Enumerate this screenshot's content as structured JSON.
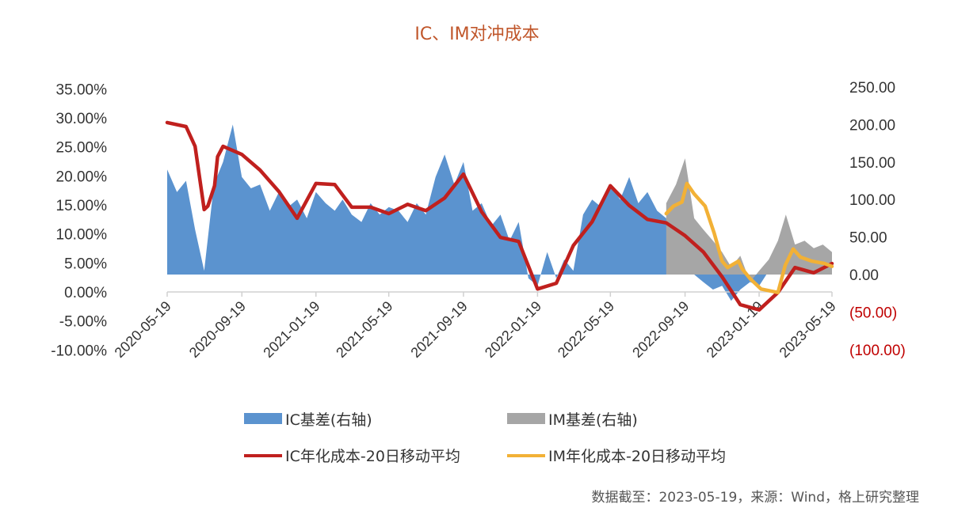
{
  "chart_data": {
    "type": "area+line",
    "title": "IC、IM对冲成本",
    "left_axis": {
      "ylim": [
        -10,
        35
      ],
      "ticks": [
        "35.00%",
        "30.00%",
        "25.00%",
        "20.00%",
        "15.00%",
        "10.00%",
        "5.00%",
        "0.00%",
        "-5.00%",
        "-10.00%"
      ],
      "tick_values": [
        35,
        30,
        25,
        20,
        15,
        10,
        5,
        0,
        -5,
        -10
      ]
    },
    "right_axis": {
      "ylim": [
        -100,
        250
      ],
      "ticks": [
        "250.00",
        "200.00",
        "150.00",
        "100.00",
        "50.00",
        "0.00",
        "(50.00)",
        "(100.00)"
      ],
      "tick_values": [
        250,
        200,
        150,
        100,
        50,
        0,
        -50,
        -100
      ],
      "negative_color": "#c00000"
    },
    "x_axis": {
      "range": [
        "2020-05-19",
        "2023-05-19"
      ],
      "ticks": [
        "2020-05-19",
        "2020-09-19",
        "2021-01-19",
        "2021-05-19",
        "2021-09-19",
        "2022-01-19",
        "2022-05-19",
        "2022-09-19",
        "2023-01-19",
        "2023-05-19"
      ]
    },
    "grid": false,
    "legend_placement": "bottom",
    "x": [
      "2020-05-19",
      "2020-06-04",
      "2020-06-19",
      "2020-07-04",
      "2020-07-19",
      "2020-08-04",
      "2020-08-19",
      "2020-09-04",
      "2020-09-19",
      "2020-10-04",
      "2020-10-19",
      "2020-11-04",
      "2020-11-19",
      "2020-12-04",
      "2020-12-19",
      "2021-01-04",
      "2021-01-19",
      "2021-02-04",
      "2021-02-19",
      "2021-03-04",
      "2021-03-19",
      "2021-04-04",
      "2021-04-19",
      "2021-05-04",
      "2021-05-19",
      "2021-06-04",
      "2021-06-19",
      "2021-07-04",
      "2021-07-19",
      "2021-08-04",
      "2021-08-19",
      "2021-09-04",
      "2021-09-19",
      "2021-10-04",
      "2021-10-19",
      "2021-11-04",
      "2021-11-19",
      "2021-12-04",
      "2021-12-19",
      "2022-01-04",
      "2022-01-19",
      "2022-02-04",
      "2022-02-19",
      "2022-03-04",
      "2022-03-19",
      "2022-04-04",
      "2022-04-19",
      "2022-05-04",
      "2022-05-19",
      "2022-06-04",
      "2022-06-19",
      "2022-07-04",
      "2022-07-19",
      "2022-08-04",
      "2022-08-19",
      "2022-09-04",
      "2022-09-19",
      "2022-10-04",
      "2022-10-19",
      "2022-11-04",
      "2022-11-19",
      "2022-12-04",
      "2022-12-19",
      "2023-01-04",
      "2023-01-19",
      "2023-02-04",
      "2023-02-19",
      "2023-03-04",
      "2023-03-19",
      "2023-04-04",
      "2023-04-19",
      "2023-05-04",
      "2023-05-19"
    ],
    "area_series": [
      {
        "name": "IC基差(右轴)",
        "axis": "right",
        "color": "#5b93cf",
        "values": [
          140,
          110,
          125,
          60,
          5,
          120,
          150,
          200,
          130,
          115,
          120,
          85,
          110,
          90,
          100,
          75,
          110,
          95,
          85,
          100,
          80,
          70,
          95,
          80,
          90,
          85,
          70,
          95,
          80,
          130,
          160,
          120,
          150,
          85,
          95,
          65,
          80,
          45,
          70,
          -5,
          -15,
          30,
          -5,
          20,
          5,
          80,
          100,
          90,
          120,
          100,
          130,
          95,
          110,
          85,
          75,
          0,
          10,
          0,
          -10,
          -20,
          -15,
          -35,
          -20,
          -10,
          -15,
          5,
          10,
          20,
          15,
          25,
          20,
          15,
          20
        ]
      },
      {
        "name": "IM基差(右轴)",
        "axis": "right",
        "color": "#a6a6a6",
        "values": [
          null,
          null,
          null,
          null,
          null,
          null,
          null,
          null,
          null,
          null,
          null,
          null,
          null,
          null,
          null,
          null,
          null,
          null,
          null,
          null,
          null,
          null,
          null,
          null,
          null,
          null,
          null,
          null,
          null,
          null,
          null,
          null,
          null,
          null,
          null,
          null,
          null,
          null,
          null,
          null,
          null,
          null,
          null,
          null,
          null,
          null,
          null,
          null,
          null,
          null,
          null,
          null,
          null,
          null,
          95,
          120,
          155,
          75,
          60,
          45,
          30,
          10,
          25,
          -10,
          5,
          20,
          45,
          80,
          40,
          45,
          35,
          40,
          30
        ]
      }
    ],
    "line_series": [
      {
        "name": "IC年化成本-20日移动平均",
        "axis": "left",
        "color": "#c0201e",
        "points": [
          [
            "2020-05-19",
            29.2
          ],
          [
            "2020-06-19",
            28.5
          ],
          [
            "2020-07-04",
            25.1
          ],
          [
            "2020-07-19",
            14.2
          ],
          [
            "2020-07-25",
            14.8
          ],
          [
            "2020-08-05",
            18.3
          ],
          [
            "2020-08-10",
            23.3
          ],
          [
            "2020-08-19",
            25.1
          ],
          [
            "2020-09-19",
            23.7
          ],
          [
            "2020-10-19",
            21.0
          ],
          [
            "2020-11-19",
            17.3
          ],
          [
            "2020-12-19",
            12.7
          ],
          [
            "2021-01-19",
            18.7
          ],
          [
            "2021-02-19",
            18.5
          ],
          [
            "2021-03-19",
            14.6
          ],
          [
            "2021-04-19",
            14.6
          ],
          [
            "2021-05-19",
            13.5
          ],
          [
            "2021-06-19",
            15.1
          ],
          [
            "2021-07-19",
            14.0
          ],
          [
            "2021-08-19",
            16.2
          ],
          [
            "2021-09-19",
            20.3
          ],
          [
            "2021-10-19",
            13.8
          ],
          [
            "2021-11-19",
            9.4
          ],
          [
            "2021-12-19",
            8.7
          ],
          [
            "2022-01-19",
            0.5
          ],
          [
            "2022-02-19",
            1.5
          ],
          [
            "2022-03-19",
            8.0
          ],
          [
            "2022-04-19",
            12.1
          ],
          [
            "2022-05-19",
            18.3
          ],
          [
            "2022-06-19",
            14.9
          ],
          [
            "2022-07-19",
            12.5
          ],
          [
            "2022-08-19",
            11.9
          ],
          [
            "2022-09-19",
            9.7
          ],
          [
            "2022-10-19",
            6.9
          ],
          [
            "2022-11-19",
            2.6
          ],
          [
            "2022-12-19",
            -2.2
          ],
          [
            "2023-01-19",
            -3.1
          ],
          [
            "2023-02-19",
            -0.1
          ],
          [
            "2023-03-19",
            4.2
          ],
          [
            "2023-04-19",
            3.3
          ],
          [
            "2023-05-19",
            4.9
          ]
        ]
      },
      {
        "name": "IM年化成本-20日移动平均",
        "axis": "left",
        "color": "#f2b136",
        "points": [
          [
            "2022-08-19",
            13.5
          ],
          [
            "2022-08-31",
            14.8
          ],
          [
            "2022-09-14",
            15.5
          ],
          [
            "2022-09-22",
            18.7
          ],
          [
            "2022-10-04",
            16.9
          ],
          [
            "2022-10-22",
            14.8
          ],
          [
            "2022-11-06",
            10.1
          ],
          [
            "2022-11-19",
            5.3
          ],
          [
            "2022-11-28",
            4.2
          ],
          [
            "2022-12-16",
            5.3
          ],
          [
            "2022-12-22",
            4.0
          ],
          [
            "2023-01-04",
            2.3
          ],
          [
            "2023-01-22",
            0.5
          ],
          [
            "2023-02-19",
            -0.1
          ],
          [
            "2023-03-03",
            4.6
          ],
          [
            "2023-03-16",
            7.4
          ],
          [
            "2023-03-28",
            6.0
          ],
          [
            "2023-04-16",
            5.3
          ],
          [
            "2023-05-07",
            4.9
          ],
          [
            "2023-05-19",
            4.4
          ]
        ]
      }
    ]
  },
  "footnote": "数据截至：2023-05-19，来源：Wind，格上研究整理"
}
